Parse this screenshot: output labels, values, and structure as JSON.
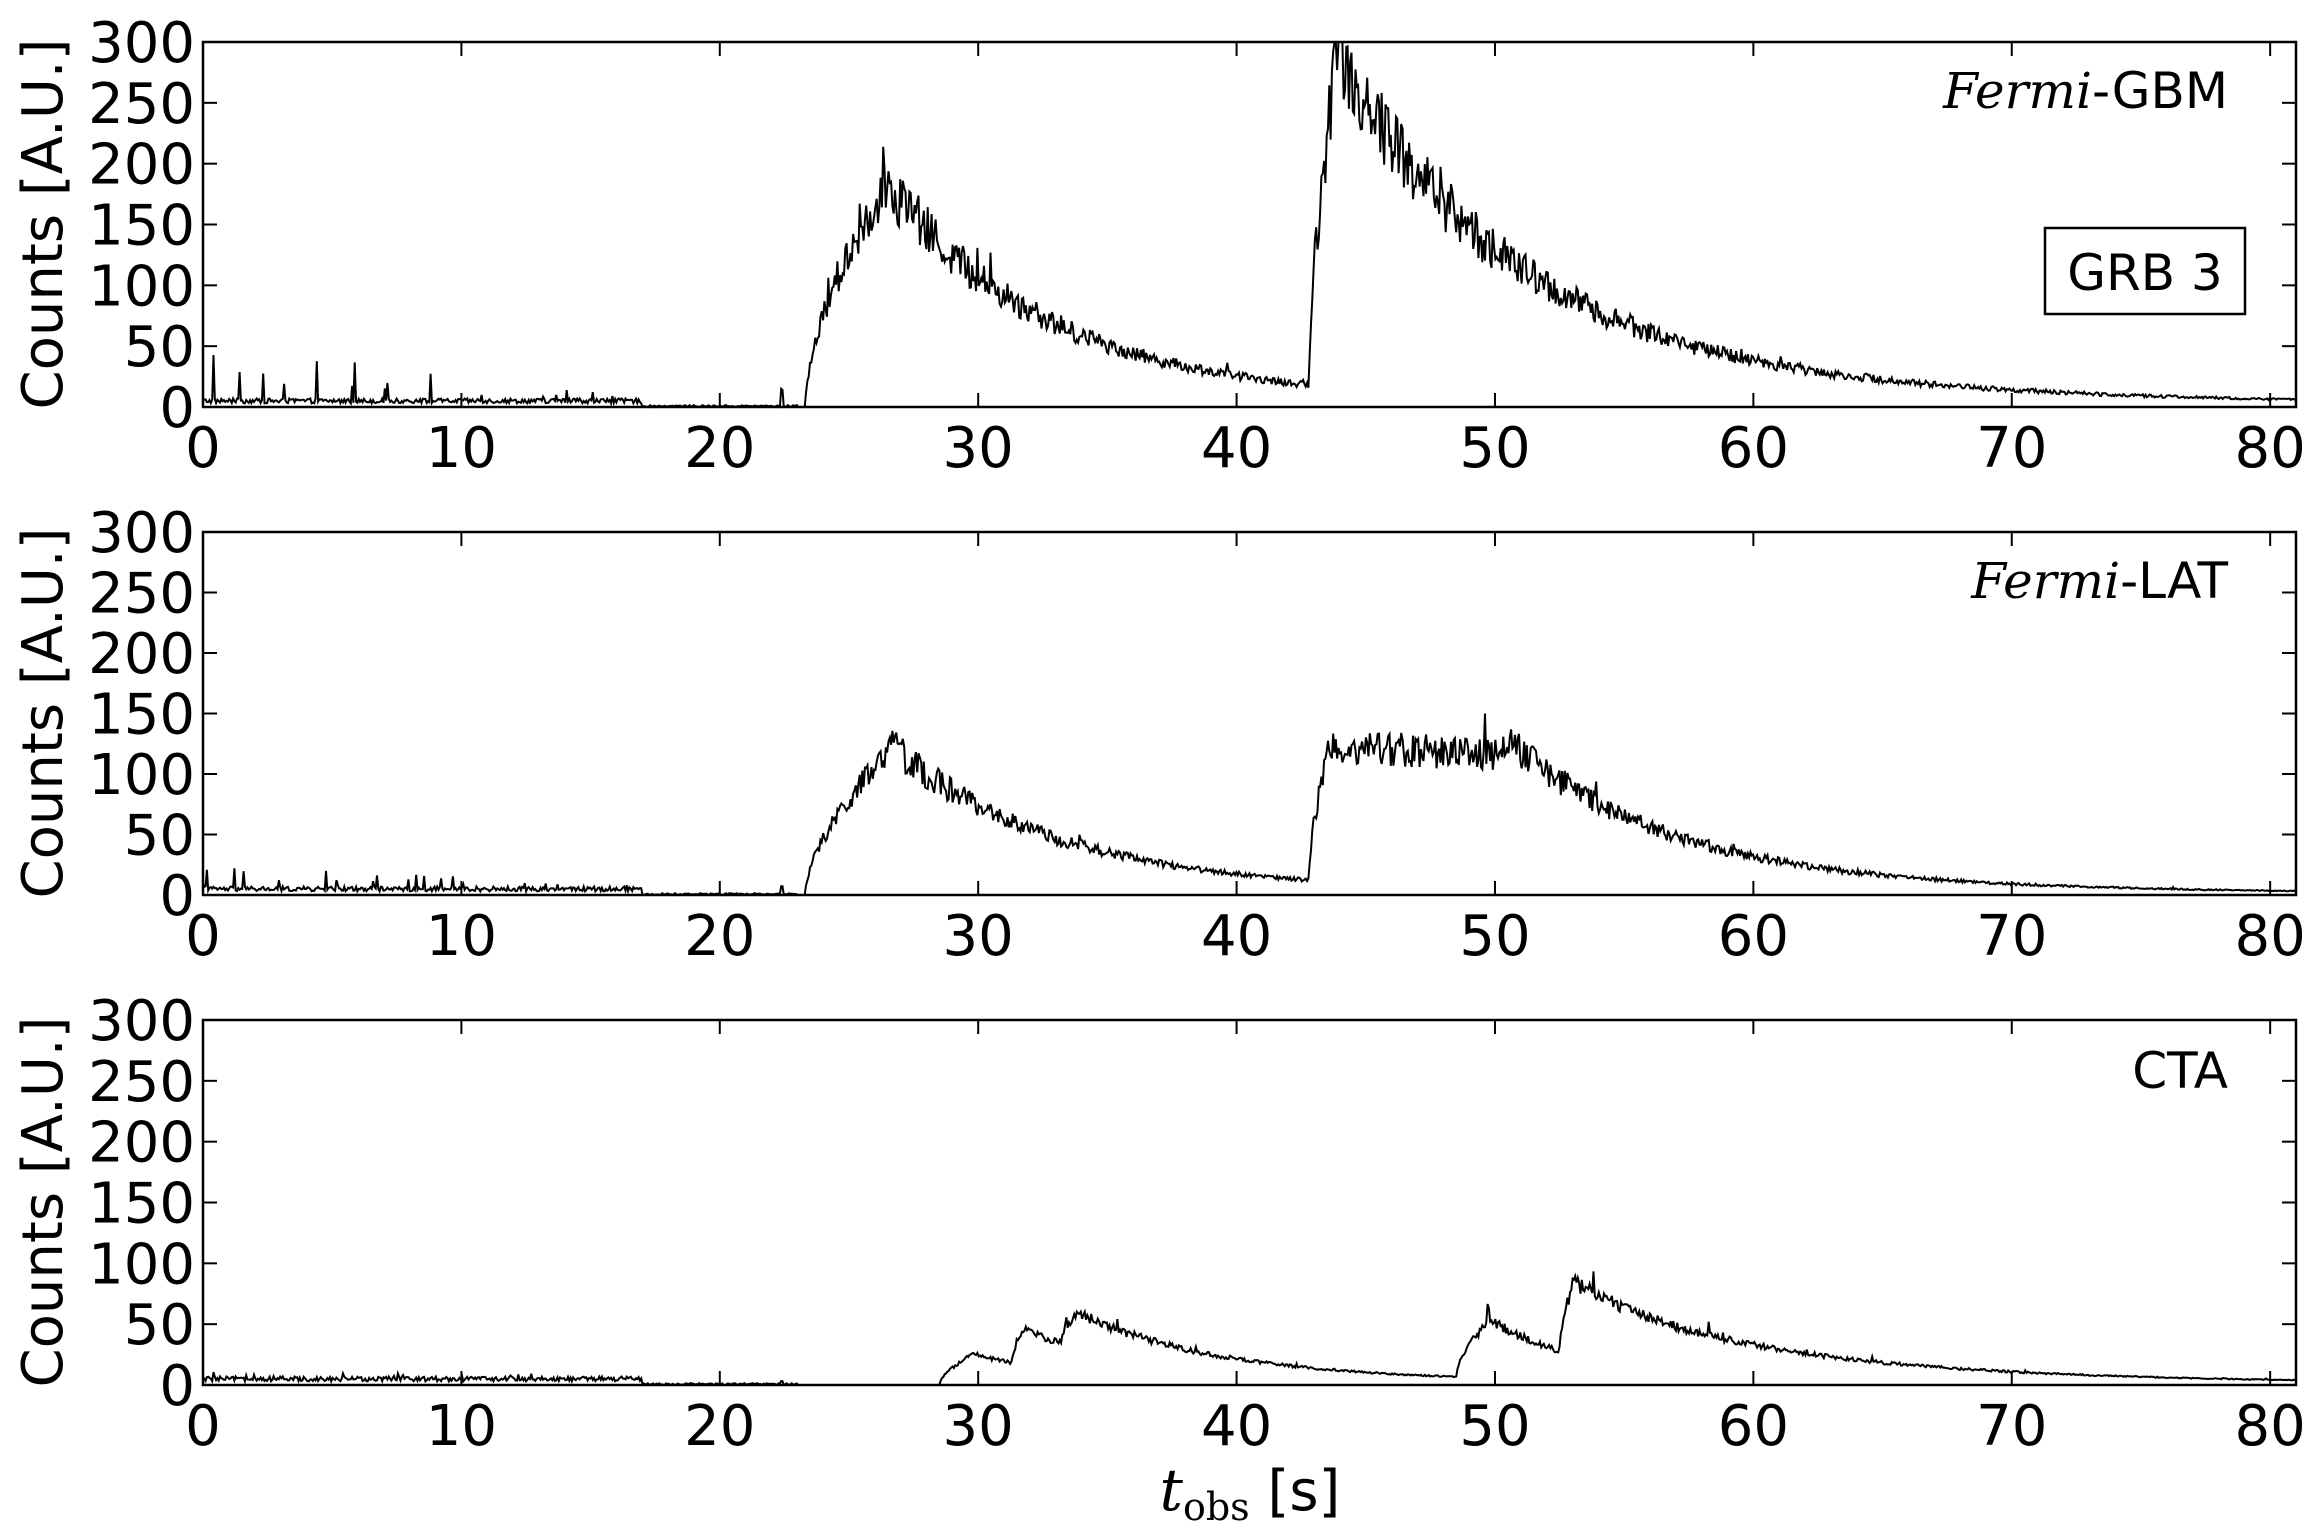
{
  "chart_data": [
    {
      "type": "line",
      "instrument_name": "Fermi",
      "instrument_suffix": "-GBM",
      "box_label": "GRB 3",
      "ylabel": "Counts [A.U.]",
      "xlim": [
        0,
        81
      ],
      "ylim": [
        0,
        300
      ],
      "xticks": [
        "0",
        "10",
        "20",
        "30",
        "40",
        "50",
        "60",
        "70",
        "80"
      ],
      "yticks": [
        "0",
        "50",
        "100",
        "150",
        "200",
        "250",
        "300"
      ],
      "pulses": [
        {
          "t0": 23.3,
          "peak": 175,
          "rise": 2.4,
          "tpeak": 26.2,
          "decay": 6.0
        },
        {
          "t0": 42.8,
          "peak": 255,
          "rise": 0.9,
          "tpeak": 43.8,
          "decay": 6.8
        }
      ],
      "spikes_max": 45,
      "noise": 0.14,
      "series": [
        {
          "x": [
            0,
            5,
            10,
            15,
            20,
            22.5,
            23.3,
            24,
            25,
            26,
            27,
            28,
            29,
            30,
            32,
            33,
            34,
            36,
            38,
            40,
            42.7,
            42.9,
            43.5,
            44,
            45,
            46,
            48,
            50,
            51,
            52,
            53,
            54,
            55,
            56,
            58,
            60,
            65,
            70,
            75,
            81
          ],
          "y": [
            5,
            6,
            10,
            5,
            1,
            3,
            1,
            110,
            150,
            190,
            170,
            145,
            105,
            120,
            88,
            70,
            78,
            58,
            40,
            28,
            15,
            260,
            230,
            300,
            240,
            200,
            165,
            140,
            115,
            95,
            95,
            90,
            60,
            48,
            38,
            28,
            18,
            11,
            8,
            5
          ]
        }
      ]
    },
    {
      "type": "line",
      "instrument_name": "Fermi",
      "instrument_suffix": "-LAT",
      "ylabel": "Counts [A.U.]",
      "xlim": [
        0,
        81
      ],
      "ylim": [
        0,
        300
      ],
      "xticks": [
        "0",
        "10",
        "20",
        "30",
        "40",
        "50",
        "60",
        "70",
        "80"
      ],
      "yticks": [
        "0",
        "50",
        "100",
        "150",
        "200",
        "250",
        "300"
      ],
      "pulses": [
        {
          "t0": 23.3,
          "peak": 115,
          "rise": 2.6,
          "tpeak": 26.5,
          "decay": 6.0
        },
        {
          "t0": 42.8,
          "peak": 112,
          "rise": 0.6,
          "tpeak": 43.6,
          "flat_end": 50.5,
          "decay": 6.0
        }
      ],
      "spikes_max": 22,
      "noise": 0.12,
      "series": [
        {
          "x": [
            0,
            5,
            10,
            15,
            20,
            22.5,
            23.3,
            24,
            25,
            26,
            27,
            28,
            29,
            30,
            32,
            33,
            34,
            36,
            38,
            40,
            42.7,
            42.9,
            44,
            46,
            48,
            50,
            51,
            52,
            53,
            54,
            55,
            56,
            58,
            60,
            65,
            70,
            75,
            81
          ],
          "y": [
            4,
            6,
            8,
            4,
            1,
            3,
            1,
            55,
            85,
            120,
            130,
            100,
            75,
            95,
            70,
            55,
            70,
            52,
            35,
            25,
            13,
            88,
            110,
            112,
            115,
            110,
            100,
            75,
            80,
            85,
            62,
            46,
            36,
            27,
            17,
            10,
            7,
            5
          ]
        }
      ]
    },
    {
      "type": "line",
      "instrument_suffix": "CTA",
      "ylabel": "Counts [A.U.]",
      "xlabel_symbol": "t",
      "xlabel_subscript": "obs",
      "xlabel_unit": " [s]",
      "xlim": [
        0,
        81
      ],
      "ylim": [
        0,
        300
      ],
      "xticks": [
        "0",
        "10",
        "20",
        "30",
        "40",
        "50",
        "60",
        "70",
        "80"
      ],
      "yticks": [
        "0",
        "50",
        "100",
        "150",
        "200",
        "250",
        "300"
      ],
      "pulses": [
        {
          "t0": 28.5,
          "peak": 24,
          "rise": 1.2,
          "tpeak": 29.7,
          "decay": 4.0
        },
        {
          "t0": 31.3,
          "peak": 28,
          "rise": 0.5,
          "tpeak": 31.8,
          "decay": 4.0
        },
        {
          "t0": 33.2,
          "peak": 28,
          "rise": 0.6,
          "tpeak": 33.8,
          "decay": 7.0
        },
        {
          "t0": 48.5,
          "peak": 45,
          "rise": 1.2,
          "tpeak": 49.7,
          "decay": 3.5
        },
        {
          "t0": 52.5,
          "peak": 55,
          "rise": 0.5,
          "tpeak": 53.0,
          "decay": 8.0
        }
      ],
      "spikes_max": 8,
      "noise": 0.08,
      "series": [
        {
          "x": [
            0,
            10,
            20,
            28,
            29.7,
            31,
            31.8,
            33,
            33.8,
            36,
            40,
            43,
            44,
            46,
            48,
            49.7,
            51,
            52.5,
            53,
            55,
            58,
            60,
            65,
            70,
            75,
            81
          ],
          "y": [
            3,
            3,
            1,
            2,
            25,
            20,
            32,
            25,
            38,
            30,
            20,
            10,
            12,
            12,
            15,
            55,
            45,
            42,
            62,
            45,
            33,
            25,
            15,
            9,
            6,
            4
          ]
        }
      ]
    }
  ]
}
